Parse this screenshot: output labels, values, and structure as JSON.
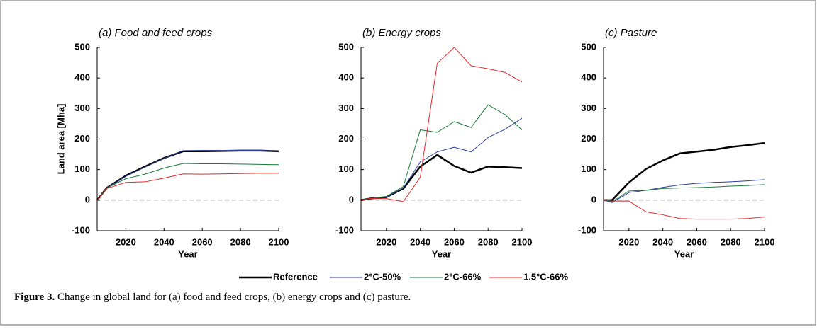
{
  "chart_data": [
    {
      "type": "line",
      "title": "(a) Food and feed crops",
      "ylabel": "Land area [Mha]",
      "xlabel": "Year",
      "x": [
        2005,
        2010,
        2020,
        2030,
        2040,
        2050,
        2060,
        2070,
        2080,
        2090,
        2100
      ],
      "xlim": [
        2005,
        2100
      ],
      "xticks": [
        2020,
        2040,
        2060,
        2080,
        2100
      ],
      "ylim": [
        -100,
        500
      ],
      "yticks": [
        -100,
        0,
        100,
        200,
        300,
        400,
        500
      ],
      "zero_line": true,
      "series": [
        {
          "name": "Reference",
          "color": "#000000",
          "width": 2.5,
          "values": [
            0,
            40,
            80,
            110,
            138,
            160,
            160,
            161,
            162,
            162,
            160
          ]
        },
        {
          "name": "2°C-50%",
          "color": "#2b3f9e",
          "width": 1,
          "values": [
            0,
            40,
            78,
            108,
            137,
            162,
            163,
            163,
            163,
            163,
            161
          ]
        },
        {
          "name": "2°C-66%",
          "color": "#1a7a3a",
          "width": 1,
          "values": [
            0,
            40,
            70,
            85,
            105,
            120,
            119,
            119,
            118,
            117,
            116
          ]
        },
        {
          "name": "1.5°C-66%",
          "color": "#e8262a",
          "width": 1,
          "values": [
            0,
            38,
            58,
            60,
            72,
            86,
            85,
            86,
            87,
            88,
            88
          ]
        }
      ]
    },
    {
      "type": "line",
      "title": "(b) Energy crops",
      "xlabel": "Year",
      "x": [
        2005,
        2010,
        2020,
        2030,
        2040,
        2050,
        2060,
        2070,
        2080,
        2090,
        2100
      ],
      "xlim": [
        2005,
        2100
      ],
      "xticks": [
        2020,
        2040,
        2060,
        2080,
        2100
      ],
      "ylim": [
        -100,
        500
      ],
      "yticks": [
        -100,
        0,
        100,
        200,
        300,
        400,
        500
      ],
      "zero_line": true,
      "series": [
        {
          "name": "Reference",
          "color": "#000000",
          "width": 2.5,
          "values": [
            0,
            5,
            10,
            38,
            110,
            148,
            112,
            90,
            110,
            108,
            105
          ]
        },
        {
          "name": "2°C-50%",
          "color": "#2b3f9e",
          "width": 1,
          "values": [
            0,
            5,
            10,
            40,
            125,
            158,
            173,
            158,
            205,
            232,
            268
          ]
        },
        {
          "name": "2°C-66%",
          "color": "#1a7a3a",
          "width": 1,
          "values": [
            0,
            5,
            12,
            45,
            230,
            222,
            257,
            238,
            312,
            280,
            230
          ]
        },
        {
          "name": "1.5°C-66%",
          "color": "#e8262a",
          "width": 1,
          "values": [
            0,
            5,
            5,
            -5,
            75,
            448,
            500,
            440,
            430,
            418,
            387
          ]
        }
      ]
    },
    {
      "type": "line",
      "title": "(c) Pasture",
      "xlabel": "Year",
      "x": [
        2005,
        2010,
        2020,
        2030,
        2040,
        2050,
        2060,
        2070,
        2080,
        2090,
        2100
      ],
      "xlim": [
        2005,
        2100
      ],
      "xticks": [
        2020,
        2040,
        2060,
        2080,
        2100
      ],
      "ylim": [
        -100,
        500
      ],
      "yticks": [
        -100,
        0,
        100,
        200,
        300,
        400,
        500
      ],
      "zero_line": true,
      "series": [
        {
          "name": "Reference",
          "color": "#000000",
          "width": 2.5,
          "values": [
            0,
            0,
            58,
            102,
            130,
            153,
            159,
            165,
            174,
            180,
            187
          ]
        },
        {
          "name": "2°C-50%",
          "color": "#2b3f9e",
          "width": 1,
          "values": [
            0,
            -8,
            25,
            32,
            42,
            50,
            55,
            58,
            60,
            63,
            67
          ]
        },
        {
          "name": "2°C-66%",
          "color": "#1a7a3a",
          "width": 1,
          "values": [
            0,
            -5,
            30,
            32,
            38,
            40,
            41,
            43,
            46,
            48,
            51
          ]
        },
        {
          "name": "1.5°C-66%",
          "color": "#e8262a",
          "width": 1,
          "values": [
            0,
            -3,
            -3,
            -38,
            -48,
            -60,
            -62,
            -62,
            -62,
            -60,
            -55
          ]
        }
      ]
    }
  ],
  "caption": {
    "label": "Figure 3.",
    "text": "Change in global land for (a) food and feed crops, (b) energy crops and (c) pasture."
  }
}
